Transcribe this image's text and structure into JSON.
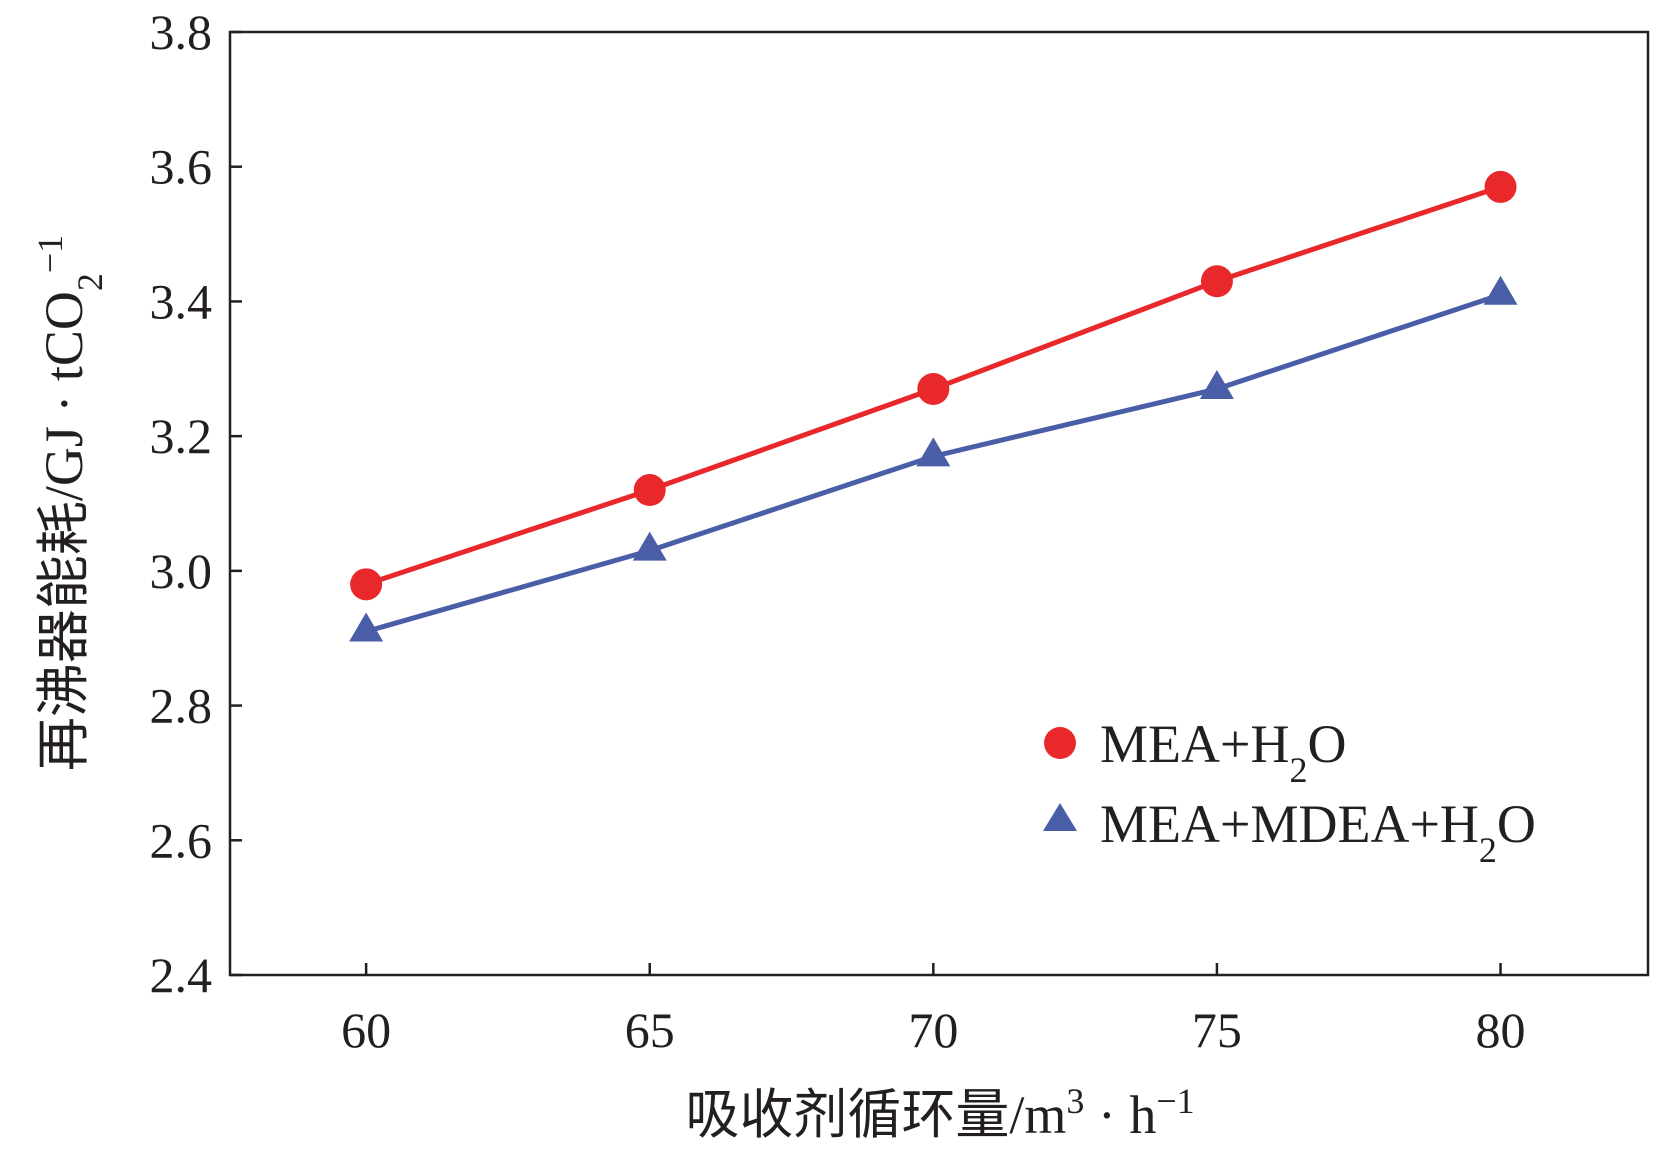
{
  "chart_data": {
    "type": "line",
    "title": "",
    "xlabel": "吸收剂循环量/m³·h⁻¹",
    "ylabel": "再沸器能耗/GJ·tCO₂⁻¹",
    "x": [
      60,
      65,
      70,
      75,
      80
    ],
    "xlim": [
      57.6,
      82.6
    ],
    "ylim": [
      2.4,
      3.8
    ],
    "xticks": [
      "60",
      "65",
      "70",
      "75",
      "80"
    ],
    "yticks": [
      "2.4",
      "2.6",
      "2.8",
      "3.0",
      "3.2",
      "3.4",
      "3.6",
      "3.8"
    ],
    "grid": false,
    "legend_position": "bottom-right",
    "series": [
      {
        "name": "MEA+H₂O",
        "marker": "circle",
        "color": "#e8282b",
        "values": [
          2.98,
          3.12,
          3.27,
          3.43,
          3.57
        ]
      },
      {
        "name": "MEA+MDEA+H₂O",
        "marker": "triangle",
        "color": "#4a5ea8",
        "values": [
          2.91,
          3.03,
          3.17,
          3.27,
          3.41
        ]
      }
    ]
  },
  "labels": {
    "ylabel_main": "再沸器能耗/GJ · tCO",
    "ylabel_sub": "2",
    "ylabel_sup": "−1",
    "xlabel_main": "吸收剂循环量/m",
    "xlabel_sup3": "3",
    "xlabel_mid": " · h",
    "xlabel_sup": "−1",
    "legend1_main": "MEA+H",
    "legend1_sub": "2",
    "legend1_end": "O",
    "legend2_main": "MEA+MDEA+H",
    "legend2_sub": "2",
    "legend2_end": "O"
  }
}
